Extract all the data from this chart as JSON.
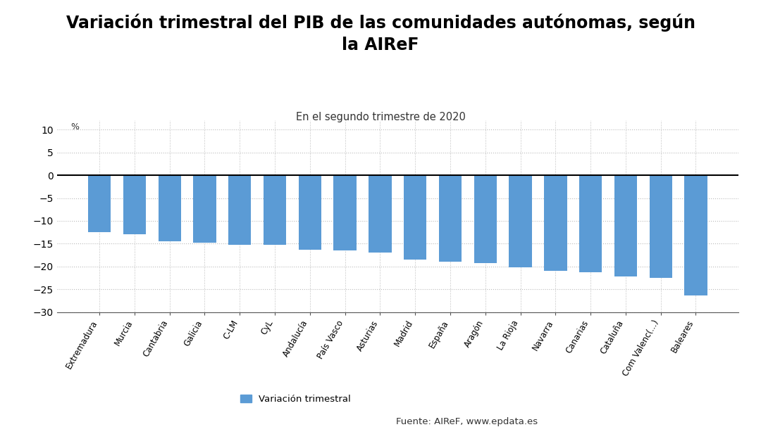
{
  "title": "Variación trimestral del PIB de las comunidades autónomas, según\nla AIReF",
  "subtitle": "En el segundo trimestre de 2020",
  "pct_label": "%",
  "ylim": [
    -30,
    12
  ],
  "yticks": [
    -30,
    -25,
    -20,
    -15,
    -10,
    -5,
    0,
    5,
    10
  ],
  "bar_color": "#5B9BD5",
  "background_color": "#ffffff",
  "legend_label": "Variación trimestral",
  "source_text": "Fuente: AIReF, www.epdata.es",
  "categories": [
    "Extremadura",
    "Murcia",
    "Cantabria",
    "Galicia",
    "C-LM",
    "CyL",
    "Andalucía",
    "País Vasco",
    "Asturias",
    "Madrid",
    "España",
    "Aragón",
    "La Rioja",
    "Navarra",
    "Canarias",
    "Cataluña",
    "Com Valenc(...)",
    "Baleares"
  ],
  "values": [
    -12.5,
    -13.0,
    -14.5,
    -14.8,
    -15.2,
    -15.3,
    -16.3,
    -16.5,
    -17.0,
    -18.5,
    -19.0,
    -19.3,
    -20.2,
    -21.0,
    -21.2,
    -22.2,
    -22.5,
    -26.3
  ]
}
